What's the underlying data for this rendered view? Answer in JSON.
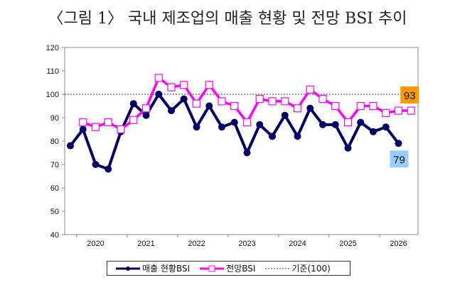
{
  "title": "〈그림 1〉 국내 제조업의 매출 현황 및 전망 BSI 추이",
  "chart_data": {
    "type": "line",
    "title": "〈그림 1〉 국내 제조업의 매출 현황 및 전망 BSI 추이",
    "xlabel": "",
    "ylabel": "",
    "ylim": [
      40,
      120
    ],
    "yticks": [
      40,
      50,
      60,
      70,
      80,
      90,
      100,
      110,
      120
    ],
    "xtick_labels": [
      "2020",
      "2021",
      "2022",
      "2023",
      "2024",
      "2025",
      "2026"
    ],
    "reference_line": {
      "name": "기준(100)",
      "value": 100
    },
    "series": [
      {
        "name": "매출 현황BSI",
        "color": "#000066",
        "values": [
          78,
          85,
          70,
          68,
          84,
          96,
          91,
          100,
          93,
          98,
          86,
          95,
          86,
          88,
          75,
          87,
          82,
          91,
          82,
          94,
          87,
          87,
          77,
          88,
          84,
          86,
          79
        ],
        "end_label": "79",
        "end_label_color": "#99ccff"
      },
      {
        "name": "전망BSI",
        "color": "#ff00ff",
        "values": [
          null,
          88,
          86,
          88,
          85,
          89,
          94,
          107,
          103,
          104,
          96,
          104,
          97,
          95,
          88,
          98,
          97,
          97,
          94,
          102,
          98,
          95,
          88,
          95,
          95,
          92,
          93,
          93
        ],
        "end_label": "93",
        "end_label_color": "#ff9900"
      }
    ],
    "grid": false,
    "legend_placement": "bottom"
  }
}
